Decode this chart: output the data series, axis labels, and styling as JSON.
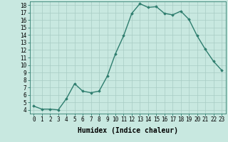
{
  "x": [
    0,
    1,
    2,
    3,
    4,
    5,
    6,
    7,
    8,
    9,
    10,
    11,
    12,
    13,
    14,
    15,
    16,
    17,
    18,
    19,
    20,
    21,
    22,
    23
  ],
  "y": [
    4.5,
    4.1,
    4.1,
    4.0,
    5.5,
    7.5,
    6.5,
    6.3,
    6.5,
    8.5,
    11.5,
    13.9,
    16.9,
    18.2,
    17.7,
    17.8,
    16.9,
    16.7,
    17.2,
    16.1,
    13.9,
    12.1,
    10.5,
    9.3
  ],
  "line_color": "#2e7d6e",
  "marker": "D",
  "marker_size": 1.8,
  "bg_color": "#c8e8e0",
  "grid_color": "#a8ccc4",
  "xlabel": "Humidex (Indice chaleur)",
  "xlim": [
    -0.5,
    23.5
  ],
  "ylim": [
    3.5,
    18.5
  ],
  "yticks": [
    4,
    5,
    6,
    7,
    8,
    9,
    10,
    11,
    12,
    13,
    14,
    15,
    16,
    17,
    18
  ],
  "xticks": [
    0,
    1,
    2,
    3,
    4,
    5,
    6,
    7,
    8,
    9,
    10,
    11,
    12,
    13,
    14,
    15,
    16,
    17,
    18,
    19,
    20,
    21,
    22,
    23
  ],
  "xtick_labels": [
    "0",
    "1",
    "2",
    "3",
    "4",
    "5",
    "6",
    "7",
    "8",
    "9",
    "10",
    "11",
    "12",
    "13",
    "14",
    "15",
    "16",
    "17",
    "18",
    "19",
    "20",
    "21",
    "22",
    "23"
  ],
  "tick_fontsize": 5.5,
  "xlabel_fontsize": 7,
  "line_width": 1.0
}
